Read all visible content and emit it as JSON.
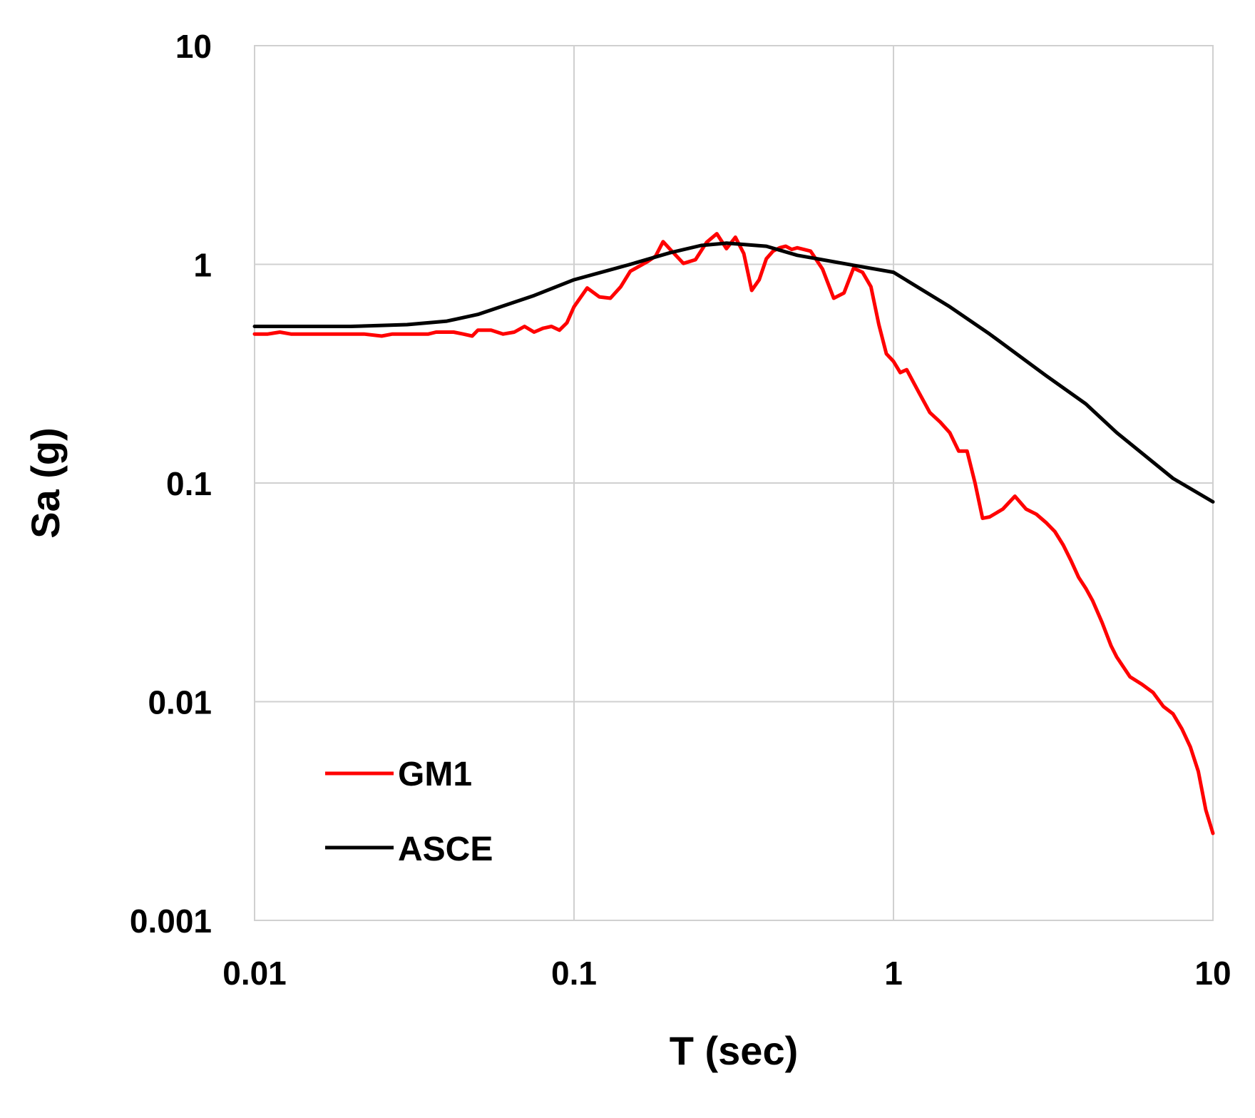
{
  "chart_data": {
    "type": "line",
    "xlabel": "T (sec)",
    "ylabel": "Sa (g)",
    "xscale": "log",
    "yscale": "log",
    "xlim": [
      0.01,
      10
    ],
    "ylim": [
      0.001,
      10
    ],
    "xticks": [
      "0.01",
      "0.1",
      "1",
      "10"
    ],
    "yticks": [
      "0.001",
      "0.01",
      "0.1",
      "1",
      "10"
    ],
    "grid": true,
    "legend": "bottom-left",
    "series": [
      {
        "name": "GM1",
        "color": "#ff0000",
        "x": [
          0.01,
          0.011,
          0.012,
          0.013,
          0.015,
          0.017,
          0.02,
          0.022,
          0.025,
          0.027,
          0.03,
          0.032,
          0.035,
          0.037,
          0.04,
          0.042,
          0.045,
          0.048,
          0.05,
          0.055,
          0.06,
          0.065,
          0.07,
          0.075,
          0.08,
          0.085,
          0.09,
          0.095,
          0.1,
          0.11,
          0.12,
          0.13,
          0.14,
          0.15,
          0.16,
          0.17,
          0.18,
          0.19,
          0.2,
          0.22,
          0.24,
          0.26,
          0.28,
          0.3,
          0.32,
          0.34,
          0.36,
          0.38,
          0.4,
          0.42,
          0.44,
          0.46,
          0.48,
          0.5,
          0.55,
          0.6,
          0.65,
          0.7,
          0.75,
          0.8,
          0.85,
          0.9,
          0.95,
          1.0,
          1.05,
          1.1,
          1.2,
          1.3,
          1.4,
          1.5,
          1.6,
          1.7,
          1.8,
          1.9,
          2.0,
          2.2,
          2.4,
          2.6,
          2.8,
          3.0,
          3.2,
          3.4,
          3.6,
          3.8,
          4.0,
          4.2,
          4.5,
          4.8,
          5.0,
          5.5,
          6.0,
          6.5,
          7.0,
          7.5,
          8.0,
          8.5,
          9.0,
          9.5,
          10.0
        ],
        "y": [
          0.48,
          0.48,
          0.49,
          0.48,
          0.48,
          0.48,
          0.48,
          0.48,
          0.47,
          0.48,
          0.48,
          0.48,
          0.48,
          0.49,
          0.49,
          0.49,
          0.48,
          0.47,
          0.5,
          0.5,
          0.48,
          0.49,
          0.52,
          0.49,
          0.51,
          0.52,
          0.5,
          0.54,
          0.64,
          0.78,
          0.71,
          0.7,
          0.79,
          0.93,
          0.98,
          1.03,
          1.09,
          1.27,
          1.17,
          1.01,
          1.05,
          1.26,
          1.38,
          1.18,
          1.33,
          1.12,
          0.76,
          0.85,
          1.06,
          1.15,
          1.19,
          1.21,
          1.17,
          1.19,
          1.15,
          0.95,
          0.7,
          0.74,
          0.96,
          0.92,
          0.79,
          0.53,
          0.39,
          0.36,
          0.32,
          0.33,
          0.26,
          0.21,
          0.19,
          0.17,
          0.14,
          0.14,
          0.1,
          0.069,
          0.07,
          0.076,
          0.087,
          0.076,
          0.072,
          0.066,
          0.06,
          0.052,
          0.044,
          0.037,
          0.033,
          0.029,
          0.023,
          0.018,
          0.016,
          0.013,
          0.012,
          0.011,
          0.0095,
          0.0088,
          0.0075,
          0.0062,
          0.0048,
          0.0032,
          0.0025
        ]
      },
      {
        "name": "ASCE",
        "color": "#000000",
        "x": [
          0.01,
          0.02,
          0.03,
          0.04,
          0.05,
          0.075,
          0.1,
          0.15,
          0.2,
          0.25,
          0.3,
          0.4,
          0.5,
          0.75,
          1.0,
          1.5,
          2.0,
          3.0,
          4.0,
          5.0,
          7.5,
          10.0
        ],
        "y": [
          0.52,
          0.52,
          0.53,
          0.55,
          0.59,
          0.72,
          0.85,
          1.0,
          1.13,
          1.22,
          1.25,
          1.21,
          1.1,
          0.99,
          0.92,
          0.64,
          0.48,
          0.31,
          0.23,
          0.17,
          0.105,
          0.082
        ]
      }
    ]
  }
}
